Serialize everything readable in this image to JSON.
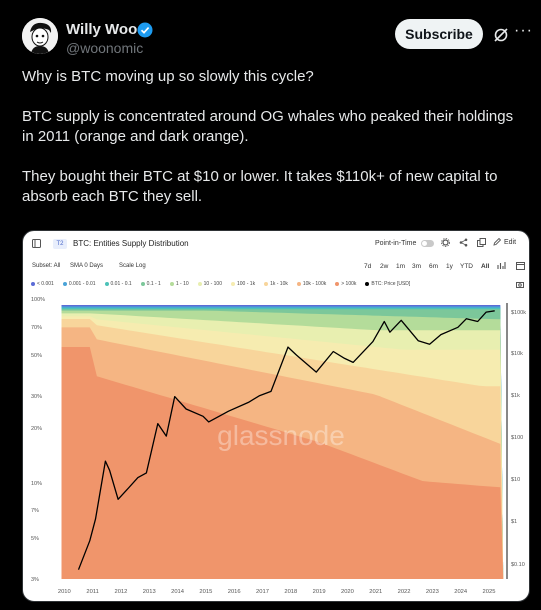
{
  "header": {
    "name": "Willy Woo",
    "handle": "@woonomic",
    "subscribe_label": "Subscribe",
    "more_label": "···"
  },
  "tweet": {
    "p1": "Why is BTC moving up so slowly this cycle?",
    "p2": "BTC supply is concentrated around OG whales who peaked their holdings in 2011 (orange and dark orange).",
    "p3": "They bought their BTC at $10 or lower. It takes $110k+ of new capital to absorb each BTC they sell."
  },
  "chart_card": {
    "badge": "T2",
    "title": "BTC: Entities Supply Distribution",
    "point_in_time": "Point-in-Time",
    "edit": "Edit",
    "subset": "Subset: All",
    "sma": "SMA 0 Days",
    "scale": "Scale Log",
    "ranges": [
      "7d",
      "2w",
      "1m",
      "3m",
      "6m",
      "1y",
      "YTD",
      "All"
    ],
    "watermark": "glassnode"
  },
  "chart_data": {
    "type": "area",
    "title": "BTC: Entities Supply Distribution",
    "legend": [
      {
        "label": "< 0.001",
        "color": "#5b6bd6"
      },
      {
        "label": "0.001 - 0.01",
        "color": "#4aa3d8"
      },
      {
        "label": "0.01 - 0.1",
        "color": "#4cc2b8"
      },
      {
        "label": "0.1 - 1",
        "color": "#7cc79a"
      },
      {
        "label": "1 - 10",
        "color": "#b4dc9a"
      },
      {
        "label": "10 - 100",
        "color": "#e8efb0"
      },
      {
        "label": "100 - 1k",
        "color": "#f6ecb0"
      },
      {
        "label": "1k - 10k",
        "color": "#f8d59b"
      },
      {
        "label": "10k - 100k",
        "color": "#f5b583"
      },
      {
        "label": "> 100k",
        "color": "#f0956b"
      },
      {
        "label": "BTC: Price [USD]",
        "color": "#000000"
      }
    ],
    "x_ticks": [
      "2010",
      "2011",
      "2012",
      "2013",
      "2014",
      "2015",
      "2016",
      "2017",
      "2018",
      "2019",
      "2020",
      "2021",
      "2022",
      "2023",
      "2024",
      "2025"
    ],
    "y_left_ticks": [
      "100%",
      "70%",
      "50%",
      "30%",
      "20%",
      "10%",
      "7%",
      "5%",
      "3%"
    ],
    "y_right_ticks": [
      "$100k",
      "$10k",
      "$1k",
      "$100",
      "$10",
      "$1",
      "$0.10"
    ],
    "price_series": {
      "name": "BTC: Price [USD]",
      "x": [
        2010.5,
        2010.9,
        2011.1,
        2011.45,
        2011.6,
        2011.9,
        2012.2,
        2012.6,
        2012.9,
        2013.3,
        2013.6,
        2013.9,
        2014.3,
        2014.9,
        2015.1,
        2015.8,
        2016.5,
        2016.9,
        2017.3,
        2017.9,
        2018.2,
        2018.9,
        2019.5,
        2019.9,
        2020.2,
        2020.9,
        2021.3,
        2021.5,
        2021.9,
        2022.5,
        2022.9,
        2023.3,
        2023.9,
        2024.2,
        2024.6,
        2024.9,
        2025.2
      ],
      "y": [
        0.06,
        0.3,
        1,
        25,
        15,
        3,
        5,
        10,
        13,
        200,
        100,
        900,
        450,
        300,
        220,
        400,
        650,
        950,
        1200,
        14000,
        9000,
        3500,
        11000,
        7500,
        6000,
        19000,
        58000,
        32000,
        62000,
        20000,
        16500,
        28000,
        42000,
        68000,
        58000,
        98000,
        105000
      ]
    }
  }
}
